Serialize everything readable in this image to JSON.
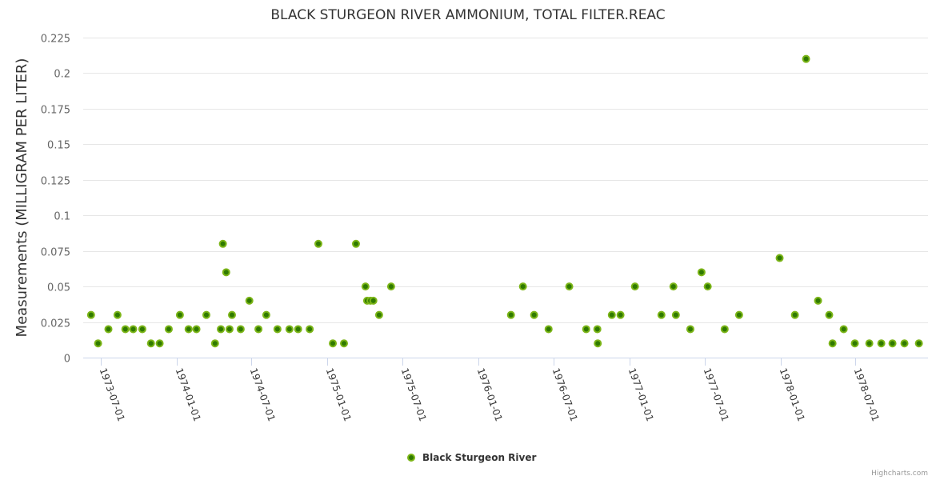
{
  "chart_data": {
    "type": "scatter",
    "title": "BLACK STURGEON RIVER AMMONIUM, TOTAL FILTER.REAC",
    "xlabel": "",
    "ylabel": "Measurements (MILLIGRAM PER LITER)",
    "ylim": [
      0,
      0.225
    ],
    "xlim": [
      "1973-05-20",
      "1978-12-24"
    ],
    "yticks": [
      "0",
      "0.025",
      "0.05",
      "0.075",
      "0.1",
      "0.125",
      "0.15",
      "0.175",
      "0.2",
      "0.225"
    ],
    "xticks": [
      "1973-07-01",
      "1974-01-01",
      "1974-07-01",
      "1975-01-01",
      "1975-07-01",
      "1976-01-01",
      "1976-07-01",
      "1977-01-01",
      "1977-07-01",
      "1978-01-01",
      "1978-07-01"
    ],
    "grid": true,
    "legend_position": "bottom-center",
    "credit": "Highcharts.com",
    "series": [
      {
        "name": "Black Sturgeon River",
        "color": "#7cb518",
        "points": [
          [
            "1973-06-08",
            0.03
          ],
          [
            "1973-06-25",
            0.01
          ],
          [
            "1973-07-20",
            0.02
          ],
          [
            "1973-08-11",
            0.03
          ],
          [
            "1973-08-30",
            0.02
          ],
          [
            "1973-09-18",
            0.02
          ],
          [
            "1973-10-10",
            0.02
          ],
          [
            "1973-10-31",
            0.01
          ],
          [
            "1973-11-21",
            0.01
          ],
          [
            "1973-12-13",
            0.02
          ],
          [
            "1974-01-09",
            0.03
          ],
          [
            "1974-01-30",
            0.02
          ],
          [
            "1974-02-18",
            0.02
          ],
          [
            "1974-03-14",
            0.03
          ],
          [
            "1974-04-04",
            0.01
          ],
          [
            "1974-04-18",
            0.02
          ],
          [
            "1974-04-23",
            0.08
          ],
          [
            "1974-05-01",
            0.06
          ],
          [
            "1974-05-09",
            0.02
          ],
          [
            "1974-05-15",
            0.03
          ],
          [
            "1974-06-05",
            0.02
          ],
          [
            "1974-06-26",
            0.04
          ],
          [
            "1974-07-18",
            0.02
          ],
          [
            "1974-08-06",
            0.03
          ],
          [
            "1974-09-02",
            0.02
          ],
          [
            "1974-10-01",
            0.02
          ],
          [
            "1974-10-22",
            0.02
          ],
          [
            "1974-11-19",
            0.02
          ],
          [
            "1974-12-10",
            0.08
          ],
          [
            "1975-01-14",
            0.01
          ],
          [
            "1975-02-10",
            0.01
          ],
          [
            "1975-03-11",
            0.08
          ],
          [
            "1975-04-03",
            0.05
          ],
          [
            "1975-04-07",
            0.04
          ],
          [
            "1975-04-15",
            0.04
          ],
          [
            "1975-04-22",
            0.04
          ],
          [
            "1975-05-06",
            0.03
          ],
          [
            "1975-06-04",
            0.05
          ],
          [
            "1976-03-20",
            0.03
          ],
          [
            "1976-04-18",
            0.05
          ],
          [
            "1976-05-15",
            0.03
          ],
          [
            "1976-06-19",
            0.02
          ],
          [
            "1976-08-08",
            0.05
          ],
          [
            "1976-09-18",
            0.02
          ],
          [
            "1976-10-15",
            0.02
          ],
          [
            "1976-10-16",
            0.01
          ],
          [
            "1976-11-19",
            0.03
          ],
          [
            "1976-12-10",
            0.03
          ],
          [
            "1977-01-14",
            0.05
          ],
          [
            "1977-03-19",
            0.03
          ],
          [
            "1977-04-17",
            0.05
          ],
          [
            "1977-04-23",
            0.03
          ],
          [
            "1977-05-28",
            0.02
          ],
          [
            "1977-06-24",
            0.06
          ],
          [
            "1977-07-09",
            0.05
          ],
          [
            "1977-08-19",
            0.02
          ],
          [
            "1977-09-23",
            0.03
          ],
          [
            "1977-12-30",
            0.07
          ],
          [
            "1978-02-05",
            0.03
          ],
          [
            "1978-03-04",
            0.21
          ],
          [
            "1978-04-02",
            0.04
          ],
          [
            "1978-04-29",
            0.03
          ],
          [
            "1978-05-07",
            0.01
          ],
          [
            "1978-06-03",
            0.02
          ],
          [
            "1978-06-30",
            0.01
          ],
          [
            "1978-08-04",
            0.01
          ],
          [
            "1978-09-02",
            0.01
          ],
          [
            "1978-09-29",
            0.01
          ],
          [
            "1978-10-28",
            0.01
          ],
          [
            "1978-12-02",
            0.01
          ]
        ]
      }
    ]
  }
}
